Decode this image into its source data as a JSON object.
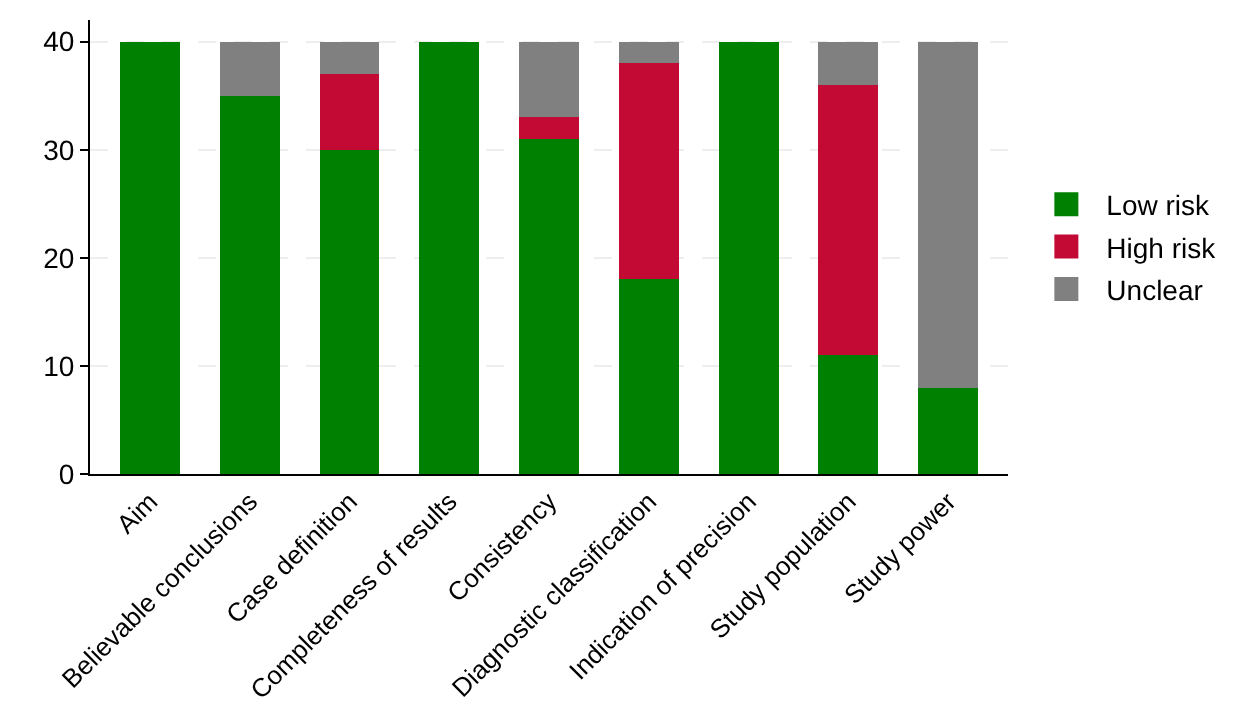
{
  "chart_data": {
    "type": "bar",
    "stacked": true,
    "categories": [
      "Aim",
      "Believable conclusions",
      "Case definition",
      "Completeness of results",
      "Consistency",
      "Diagnostic classification",
      "Indication of precision",
      "Study population",
      "Study power"
    ],
    "series": [
      {
        "name": "Low risk",
        "color": "#008000",
        "values": [
          40,
          35,
          30,
          40,
          31,
          18,
          40,
          11,
          8
        ]
      },
      {
        "name": "High risk",
        "color": "#c20a35",
        "values": [
          0,
          0,
          7,
          0,
          2,
          20,
          0,
          25,
          0
        ]
      },
      {
        "name": "Unclear",
        "color": "#808080",
        "values": [
          0,
          5,
          3,
          0,
          7,
          2,
          0,
          4,
          32
        ]
      }
    ],
    "ylim": [
      0,
      42
    ],
    "yticks": [
      0,
      10,
      20,
      30,
      40
    ],
    "grid": "y",
    "legend": "right"
  }
}
